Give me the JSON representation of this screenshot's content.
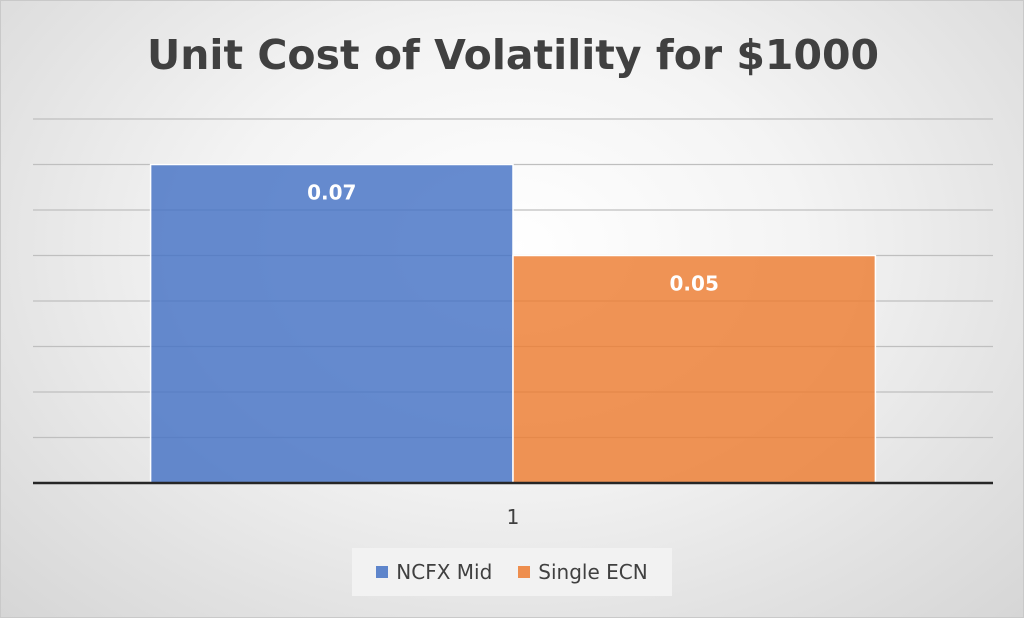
{
  "chart_data": {
    "type": "bar",
    "title": "Unit Cost of Volatility for $1000",
    "categories": [
      "1"
    ],
    "series": [
      {
        "name": "NCFX Mid",
        "values": [
          0.07
        ],
        "labels": [
          "0.07"
        ],
        "color": "#4472c4"
      },
      {
        "name": "Single ECN",
        "values": [
          0.05
        ],
        "labels": [
          "0.05"
        ],
        "color": "#ed7d31"
      }
    ],
    "xlabel": "",
    "ylabel": "",
    "ylim": [
      0,
      0.08
    ],
    "grid": true,
    "legend": "bottom"
  }
}
